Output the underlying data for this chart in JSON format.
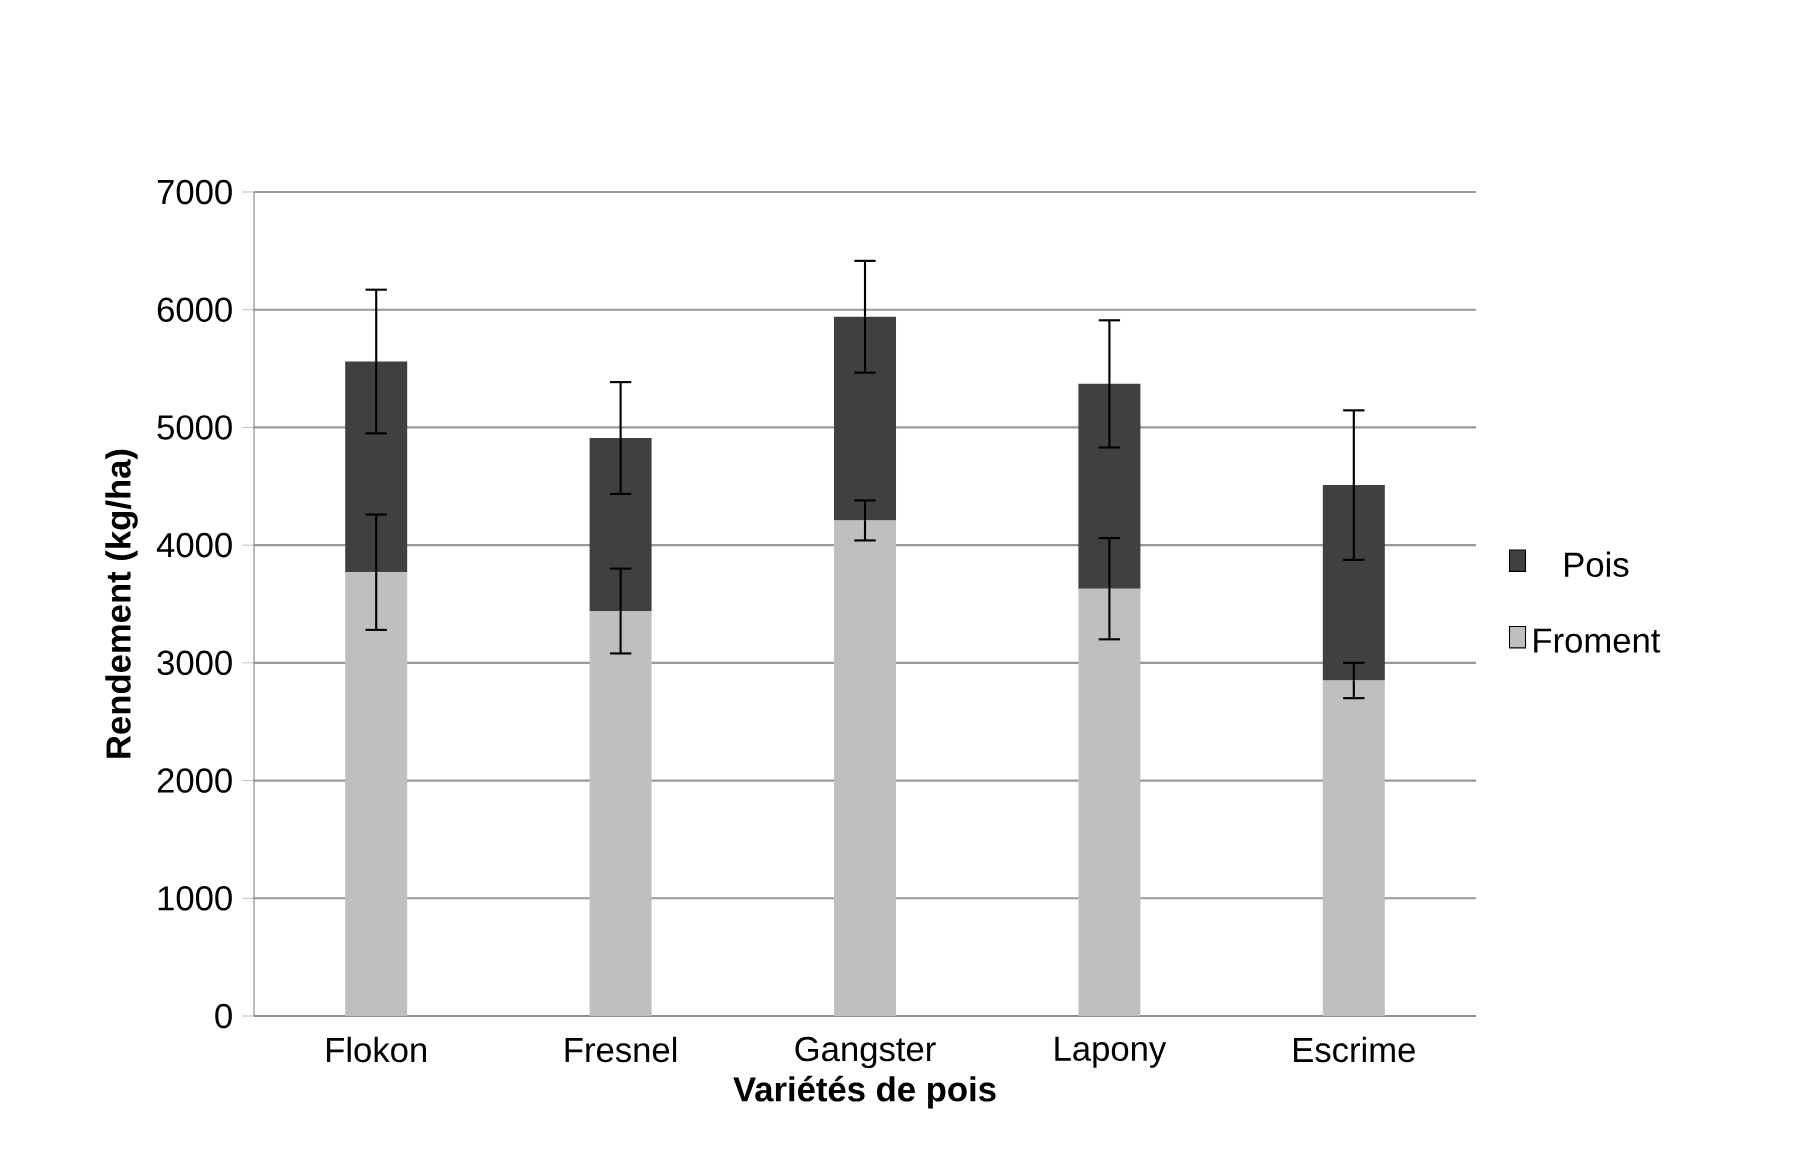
{
  "chart_data": {
    "type": "bar",
    "stacked": true,
    "xlabel": "Variétés de pois",
    "ylabel": "Rendement (kg/ha)",
    "categories": [
      "Flokon",
      "Fresnel",
      "Gangster",
      "Lapony",
      "Escrime"
    ],
    "series": [
      {
        "name": "Froment",
        "color": "#bfbfbf",
        "values": [
          3770,
          3440,
          4210,
          3630,
          2850
        ],
        "errors": [
          490,
          360,
          170,
          430,
          150
        ]
      },
      {
        "name": "Pois",
        "color": "#404040",
        "values": [
          1790,
          1470,
          1730,
          1740,
          1660
        ],
        "errors": [
          610,
          475,
          475,
          540,
          635
        ]
      }
    ],
    "ylim": [
      0,
      7000
    ],
    "yticks": [
      0,
      1000,
      2000,
      3000,
      4000,
      5000,
      6000,
      7000
    ],
    "grid": "y",
    "legend": "right"
  }
}
